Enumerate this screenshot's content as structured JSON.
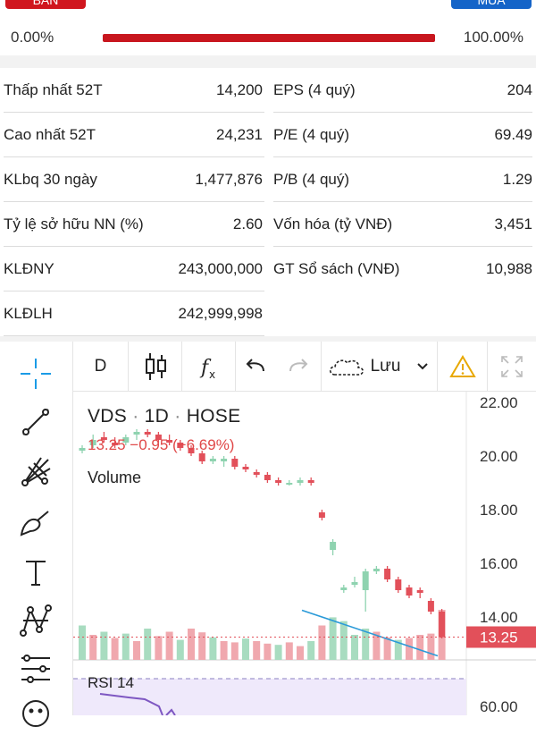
{
  "order_buttons": {
    "sell_label": "BÁN",
    "buy_label": "MUA"
  },
  "progress": {
    "left_label": "0.00%",
    "right_label": "100.00%",
    "fill_percent": 100,
    "fill_color": "#c8161e"
  },
  "stats": {
    "left": [
      {
        "label": "Thấp nhất 52T",
        "value": "14,200"
      },
      {
        "label": "Cao nhất 52T",
        "value": "24,231"
      },
      {
        "label": "KLbq 30 ngày",
        "value": "1,477,876"
      },
      {
        "label": "Tỷ lệ sở hữu NN (%)",
        "value": "2.60"
      },
      {
        "label": "KLĐNY",
        "value": "243,000,000"
      },
      {
        "label": "KLĐLH",
        "value": "242,999,998"
      }
    ],
    "right": [
      {
        "label": "EPS (4 quý)",
        "value": "204"
      },
      {
        "label": "P/E (4 quý)",
        "value": "69.49"
      },
      {
        "label": "P/B (4 quý)",
        "value": "1.29"
      },
      {
        "label": "Vốn hóa (tỷ VNĐ)",
        "value": "3,451"
      },
      {
        "label": "GT Sổ sách (VNĐ)",
        "value": "10,988"
      }
    ]
  },
  "toolbar": {
    "interval": "D",
    "save_label": "Lưu",
    "icons": [
      "crosshair-icon",
      "trend-line-icon",
      "fib-icon",
      "brush-icon",
      "text-icon",
      "pattern-icon",
      "measure-icon",
      "emoji-icon",
      "candles-icon",
      "indicators-icon",
      "undo-icon",
      "redo-icon",
      "cloud-icon",
      "chevron-down-icon",
      "warning-icon",
      "fullscreen-icon"
    ]
  },
  "chart_header": {
    "symbol": "VDS",
    "interval": "1D",
    "exchange": "HOSE",
    "sep": "·",
    "close": "13.25",
    "change": "−0.95 (−6.69%)",
    "volume_label": "Volume",
    "rsi_label": "RSI 14",
    "last_price_label": "13.25"
  },
  "colors": {
    "up": "#8fd3b0",
    "down": "#e2505a",
    "vol_up": "#a8dcc0",
    "vol_down": "#f0a8ae",
    "trend": "#2a9ad8",
    "accent": "#1a9be6"
  },
  "chart_data": {
    "type": "candlestick",
    "y_ticks": [
      "22.00",
      "20.00",
      "18.00",
      "16.00",
      "14.00"
    ],
    "rsi_ticks": [
      "60.00"
    ],
    "ylim": [
      13.4,
      22.2
    ],
    "last_price": 13.25,
    "candles": [
      {
        "o": 20.2,
        "h": 20.4,
        "l": 20.1,
        "c": 20.3
      },
      {
        "o": 20.4,
        "h": 20.8,
        "l": 20.3,
        "c": 20.6
      },
      {
        "o": 20.7,
        "h": 20.9,
        "l": 20.5,
        "c": 20.6
      },
      {
        "o": 20.5,
        "h": 20.7,
        "l": 20.3,
        "c": 20.4
      },
      {
        "o": 20.5,
        "h": 20.8,
        "l": 20.4,
        "c": 20.7
      },
      {
        "o": 20.8,
        "h": 21.0,
        "l": 20.6,
        "c": 20.9
      },
      {
        "o": 20.9,
        "h": 21.0,
        "l": 20.7,
        "c": 20.8
      },
      {
        "o": 20.8,
        "h": 20.9,
        "l": 20.5,
        "c": 20.6
      },
      {
        "o": 20.6,
        "h": 20.8,
        "l": 20.4,
        "c": 20.5
      },
      {
        "o": 20.5,
        "h": 20.6,
        "l": 20.2,
        "c": 20.3
      },
      {
        "o": 20.3,
        "h": 20.4,
        "l": 20.0,
        "c": 20.1
      },
      {
        "o": 20.1,
        "h": 20.2,
        "l": 19.7,
        "c": 19.8
      },
      {
        "o": 19.8,
        "h": 20.0,
        "l": 19.7,
        "c": 19.9
      },
      {
        "o": 19.8,
        "h": 20.0,
        "l": 19.6,
        "c": 19.9
      },
      {
        "o": 19.9,
        "h": 20.0,
        "l": 19.5,
        "c": 19.6
      },
      {
        "o": 19.6,
        "h": 19.7,
        "l": 19.4,
        "c": 19.5
      },
      {
        "o": 19.4,
        "h": 19.5,
        "l": 19.2,
        "c": 19.3
      },
      {
        "o": 19.3,
        "h": 19.4,
        "l": 19.0,
        "c": 19.1
      },
      {
        "o": 19.1,
        "h": 19.2,
        "l": 18.9,
        "c": 19.0
      },
      {
        "o": 19.0,
        "h": 19.1,
        "l": 18.9,
        "c": 19.0
      },
      {
        "o": 19.0,
        "h": 19.2,
        "l": 18.9,
        "c": 19.1
      },
      {
        "o": 19.1,
        "h": 19.2,
        "l": 18.9,
        "c": 19.0
      },
      {
        "o": 17.9,
        "h": 18.0,
        "l": 17.6,
        "c": 17.7
      },
      {
        "o": 16.5,
        "h": 16.9,
        "l": 16.3,
        "c": 16.8
      },
      {
        "o": 15.0,
        "h": 15.2,
        "l": 14.9,
        "c": 15.1
      },
      {
        "o": 15.2,
        "h": 15.5,
        "l": 15.1,
        "c": 15.3
      },
      {
        "o": 15.0,
        "h": 15.8,
        "l": 14.2,
        "c": 15.7
      },
      {
        "o": 15.7,
        "h": 15.9,
        "l": 15.6,
        "c": 15.8
      },
      {
        "o": 15.8,
        "h": 15.9,
        "l": 15.3,
        "c": 15.4
      },
      {
        "o": 15.4,
        "h": 15.5,
        "l": 14.9,
        "c": 15.0
      },
      {
        "o": 15.1,
        "h": 15.2,
        "l": 14.7,
        "c": 14.8
      },
      {
        "o": 15.0,
        "h": 15.1,
        "l": 14.7,
        "c": 14.9
      },
      {
        "o": 14.6,
        "h": 14.7,
        "l": 14.1,
        "c": 14.2
      },
      {
        "o": 14.2,
        "h": 14.3,
        "l": 13.2,
        "c": 13.25
      }
    ],
    "volumes": [
      {
        "v": 0.55,
        "up": true
      },
      {
        "v": 0.4,
        "up": false
      },
      {
        "v": 0.45,
        "up": true
      },
      {
        "v": 0.35,
        "up": false
      },
      {
        "v": 0.42,
        "up": true
      },
      {
        "v": 0.3,
        "up": false
      },
      {
        "v": 0.5,
        "up": true
      },
      {
        "v": 0.38,
        "up": false
      },
      {
        "v": 0.45,
        "up": false
      },
      {
        "v": 0.32,
        "up": true
      },
      {
        "v": 0.5,
        "up": false
      },
      {
        "v": 0.44,
        "up": false
      },
      {
        "v": 0.36,
        "up": true
      },
      {
        "v": 0.3,
        "up": false
      },
      {
        "v": 0.28,
        "up": false
      },
      {
        "v": 0.34,
        "up": true
      },
      {
        "v": 0.3,
        "up": false
      },
      {
        "v": 0.26,
        "up": false
      },
      {
        "v": 0.24,
        "up": true
      },
      {
        "v": 0.28,
        "up": false
      },
      {
        "v": 0.22,
        "up": false
      },
      {
        "v": 0.3,
        "up": true
      },
      {
        "v": 0.55,
        "up": false
      },
      {
        "v": 0.68,
        "up": true
      },
      {
        "v": 0.62,
        "up": true
      },
      {
        "v": 0.4,
        "up": true
      },
      {
        "v": 0.5,
        "up": true
      },
      {
        "v": 0.45,
        "up": false
      },
      {
        "v": 0.36,
        "up": false
      },
      {
        "v": 0.32,
        "up": true
      },
      {
        "v": 0.35,
        "up": false
      },
      {
        "v": 0.4,
        "up": false
      },
      {
        "v": 0.42,
        "up": false
      },
      {
        "v": 0.8,
        "up": false
      }
    ],
    "trend_line": {
      "from": 14.25,
      "to": 13.35
    }
  }
}
